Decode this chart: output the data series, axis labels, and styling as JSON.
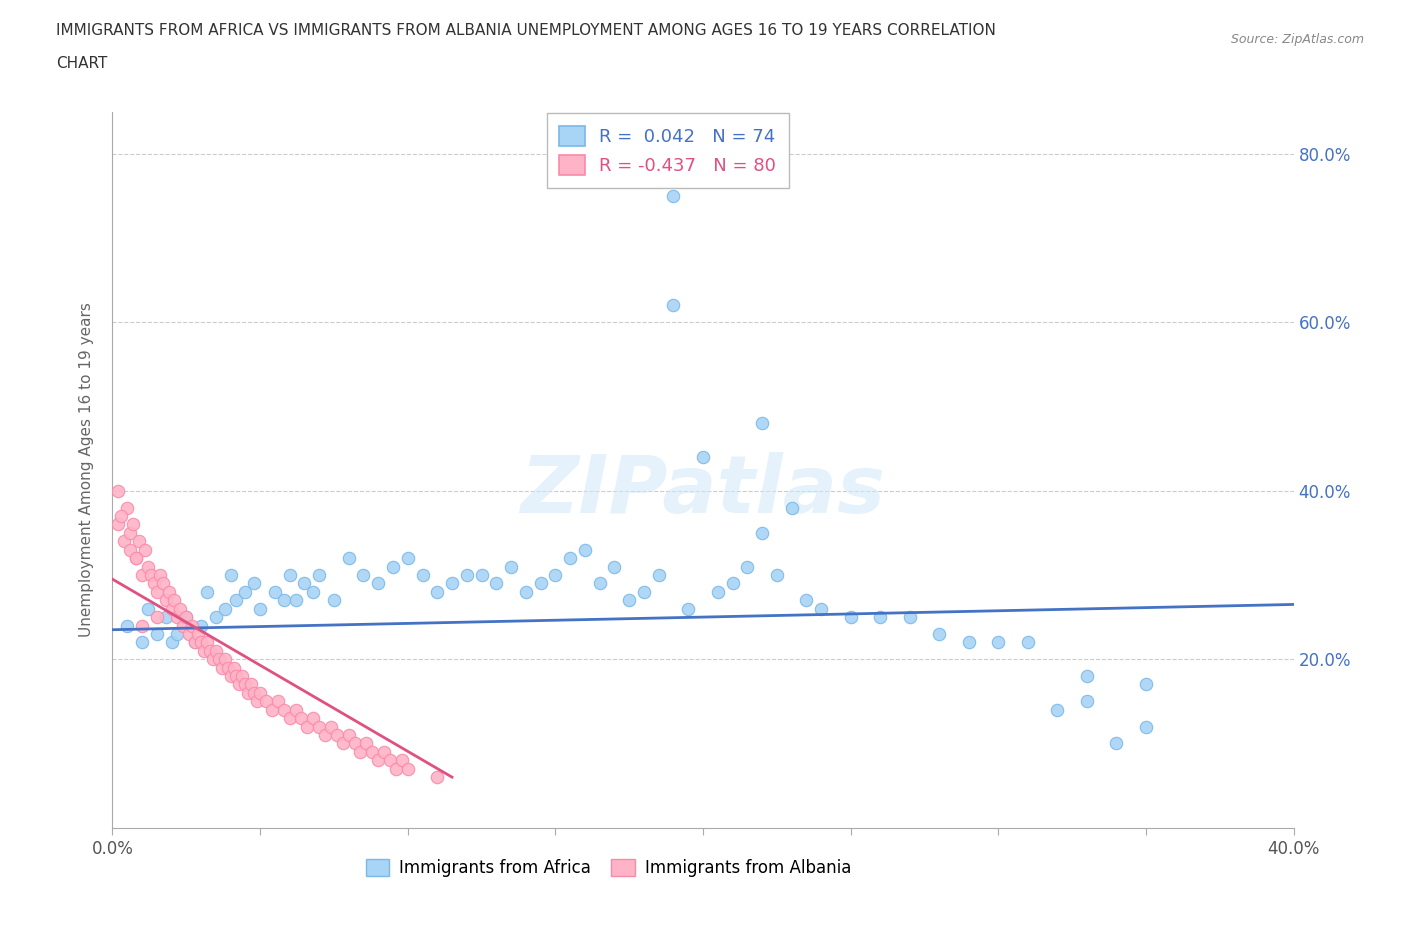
{
  "title_line1": "IMMIGRANTS FROM AFRICA VS IMMIGRANTS FROM ALBANIA UNEMPLOYMENT AMONG AGES 16 TO 19 YEARS CORRELATION",
  "title_line2": "CHART",
  "source_text": "Source: ZipAtlas.com",
  "ylabel": "Unemployment Among Ages 16 to 19 years",
  "xlim": [
    0.0,
    0.4
  ],
  "ylim": [
    0.0,
    0.85
  ],
  "ytick_positions": [
    0.0,
    0.2,
    0.4,
    0.6,
    0.8
  ],
  "xtick_positions": [
    0.0,
    0.05,
    0.1,
    0.15,
    0.2,
    0.25,
    0.3,
    0.35,
    0.4
  ],
  "africa_color_face": "#a8d4f5",
  "africa_color_edge": "#7ab8e8",
  "albania_color_face": "#ffb3c6",
  "albania_color_edge": "#f98aaa",
  "africa_trend_color": "#4472c4",
  "albania_trend_color": "#e05080",
  "watermark": "ZIPatlas",
  "watermark_color": "#d0e8f8",
  "grid_color": "#cccccc",
  "tick_label_color": "#4472c4",
  "ylabel_color": "#666666",
  "title_color": "#333333",
  "source_color": "#888888",
  "legend_r1_label": "R =  0.042   N = 74",
  "legend_r2_label": "R = -0.437   N = 80",
  "africa_x": [
    0.005,
    0.01,
    0.012,
    0.015,
    0.018,
    0.02,
    0.022,
    0.025,
    0.028,
    0.03,
    0.032,
    0.035,
    0.038,
    0.04,
    0.042,
    0.045,
    0.048,
    0.05,
    0.055,
    0.058,
    0.06,
    0.062,
    0.065,
    0.068,
    0.07,
    0.075,
    0.08,
    0.085,
    0.09,
    0.095,
    0.1,
    0.105,
    0.11,
    0.115,
    0.12,
    0.125,
    0.13,
    0.135,
    0.14,
    0.145,
    0.15,
    0.155,
    0.16,
    0.165,
    0.17,
    0.175,
    0.18,
    0.185,
    0.19,
    0.195,
    0.2,
    0.205,
    0.21,
    0.215,
    0.22,
    0.225,
    0.23,
    0.235,
    0.24,
    0.25,
    0.26,
    0.27,
    0.28,
    0.29,
    0.3,
    0.31,
    0.32,
    0.33,
    0.34,
    0.35,
    0.33,
    0.35,
    0.19,
    0.22
  ],
  "africa_y": [
    0.24,
    0.22,
    0.26,
    0.23,
    0.25,
    0.22,
    0.23,
    0.25,
    0.22,
    0.24,
    0.28,
    0.25,
    0.26,
    0.3,
    0.27,
    0.28,
    0.29,
    0.26,
    0.28,
    0.27,
    0.3,
    0.27,
    0.29,
    0.28,
    0.3,
    0.27,
    0.32,
    0.3,
    0.29,
    0.31,
    0.32,
    0.3,
    0.28,
    0.29,
    0.3,
    0.3,
    0.29,
    0.31,
    0.28,
    0.29,
    0.3,
    0.32,
    0.33,
    0.29,
    0.31,
    0.27,
    0.28,
    0.3,
    0.75,
    0.26,
    0.44,
    0.28,
    0.29,
    0.31,
    0.35,
    0.3,
    0.38,
    0.27,
    0.26,
    0.25,
    0.25,
    0.25,
    0.23,
    0.22,
    0.22,
    0.22,
    0.14,
    0.15,
    0.1,
    0.12,
    0.18,
    0.17,
    0.62,
    0.48
  ],
  "albania_x": [
    0.002,
    0.004,
    0.005,
    0.006,
    0.007,
    0.008,
    0.009,
    0.01,
    0.011,
    0.012,
    0.013,
    0.014,
    0.015,
    0.016,
    0.017,
    0.018,
    0.019,
    0.02,
    0.021,
    0.022,
    0.023,
    0.024,
    0.025,
    0.026,
    0.027,
    0.028,
    0.029,
    0.03,
    0.031,
    0.032,
    0.033,
    0.034,
    0.035,
    0.036,
    0.037,
    0.038,
    0.039,
    0.04,
    0.041,
    0.042,
    0.043,
    0.044,
    0.045,
    0.046,
    0.047,
    0.048,
    0.049,
    0.05,
    0.052,
    0.054,
    0.056,
    0.058,
    0.06,
    0.062,
    0.064,
    0.066,
    0.068,
    0.07,
    0.072,
    0.074,
    0.076,
    0.078,
    0.08,
    0.082,
    0.084,
    0.086,
    0.088,
    0.09,
    0.092,
    0.094,
    0.096,
    0.098,
    0.1,
    0.11,
    0.002,
    0.003,
    0.006,
    0.008,
    0.01,
    0.015
  ],
  "albania_y": [
    0.36,
    0.34,
    0.38,
    0.35,
    0.36,
    0.32,
    0.34,
    0.3,
    0.33,
    0.31,
    0.3,
    0.29,
    0.28,
    0.3,
    0.29,
    0.27,
    0.28,
    0.26,
    0.27,
    0.25,
    0.26,
    0.24,
    0.25,
    0.23,
    0.24,
    0.22,
    0.23,
    0.22,
    0.21,
    0.22,
    0.21,
    0.2,
    0.21,
    0.2,
    0.19,
    0.2,
    0.19,
    0.18,
    0.19,
    0.18,
    0.17,
    0.18,
    0.17,
    0.16,
    0.17,
    0.16,
    0.15,
    0.16,
    0.15,
    0.14,
    0.15,
    0.14,
    0.13,
    0.14,
    0.13,
    0.12,
    0.13,
    0.12,
    0.11,
    0.12,
    0.11,
    0.1,
    0.11,
    0.1,
    0.09,
    0.1,
    0.09,
    0.08,
    0.09,
    0.08,
    0.07,
    0.08,
    0.07,
    0.06,
    0.4,
    0.37,
    0.33,
    0.32,
    0.24,
    0.25
  ],
  "africa_trend_x": [
    0.0,
    0.4
  ],
  "africa_trend_y": [
    0.235,
    0.265
  ],
  "albania_trend_x": [
    0.0,
    0.115
  ],
  "albania_trend_y": [
    0.295,
    0.06
  ]
}
